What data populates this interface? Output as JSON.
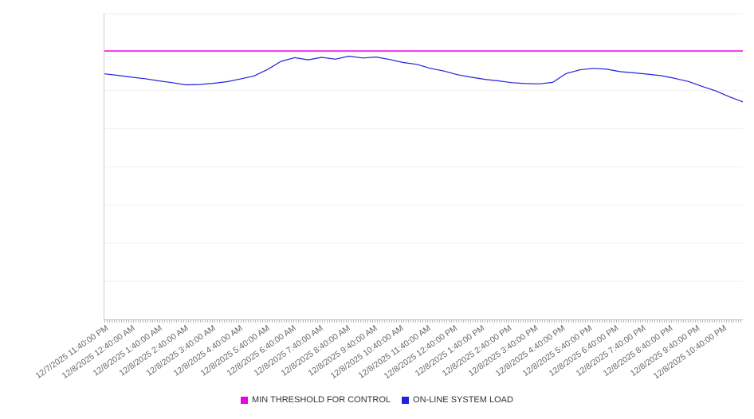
{
  "chart_data": {
    "type": "line",
    "title": "",
    "xlabel": "",
    "ylabel": "",
    "ylim": [
      0,
      100
    ],
    "grid": "horizontal",
    "grid_divisions": 8,
    "legend_position": "bottom",
    "grid_color": "#f0f0f0",
    "axis_color": "#c9c9c9",
    "x_labels": [
      "12/7/2025 11:40:00 PM",
      "12/8/2025 12:40:00 AM",
      "12/8/2025 1:40:00 AM",
      "12/8/2025 2:40:00 AM",
      "12/8/2025 3:40:00 AM",
      "12/8/2025 4:40:00 AM",
      "12/8/2025 5:40:00 AM",
      "12/8/2025 6:40:00 AM",
      "12/8/2025 7:40:00 AM",
      "12/8/2025 8:40:00 AM",
      "12/8/2025 9:40:00 AM",
      "12/8/2025 10:40:00 AM",
      "12/8/2025 11:40:00 AM",
      "12/8/2025 12:40:00 PM",
      "12/8/2025 1:40:00 PM",
      "12/8/2025 2:40:00 PM",
      "12/8/2025 3:40:00 PM",
      "12/8/2025 4:40:00 PM",
      "12/8/2025 5:40:00 PM",
      "12/8/2025 6:40:00 PM",
      "12/8/2025 7:40:00 PM",
      "12/8/2025 8:40:00 PM",
      "12/8/2025 9:40:00 PM",
      "12/8/2025 10:40:00 PM"
    ],
    "series": [
      {
        "name": "MIN THRESHOLD FOR CONTROL",
        "color": "#ee00ee",
        "style": "threshold",
        "value": 88
      },
      {
        "name": "ON-LINE SYSTEM LOAD",
        "color": "#2222dd",
        "style": "line",
        "values": [
          80.5,
          80.0,
          79.4,
          78.9,
          78.2,
          77.6,
          76.9,
          77.0,
          77.4,
          77.9,
          78.8,
          79.8,
          81.9,
          84.6,
          85.8,
          85.1,
          85.9,
          85.3,
          86.3,
          85.7,
          86.0,
          85.2,
          84.2,
          83.6,
          82.3,
          81.4,
          80.2,
          79.4,
          78.7,
          78.2,
          77.6,
          77.3,
          77.2,
          77.7,
          80.6,
          81.8,
          82.3,
          82.0,
          81.2,
          80.8,
          80.4,
          79.9,
          79.0,
          78.0,
          76.4,
          74.9,
          73.0,
          71.3
        ]
      }
    ]
  }
}
